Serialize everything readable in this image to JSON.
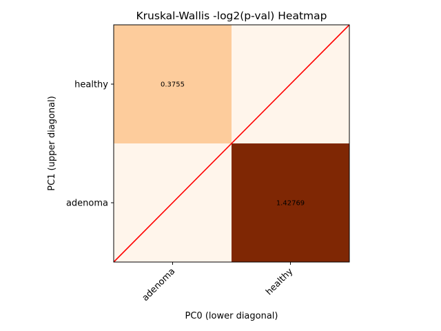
{
  "chart_data": {
    "type": "heatmap",
    "title": "Kruskal-Wallis -log2(p-val) Heatmap",
    "xlabel": "PC0 (lower diagonal)",
    "ylabel": "PC1 (upper diagonal)",
    "x_categories": [
      "adenoma",
      "healthy"
    ],
    "y_categories": [
      "healthy",
      "adenoma"
    ],
    "cells": [
      {
        "row": 0,
        "col": 0,
        "value": 0.3755,
        "label": "0.3755"
      },
      {
        "row": 0,
        "col": 1,
        "value": 0,
        "label": ""
      },
      {
        "row": 1,
        "col": 0,
        "value": 0,
        "label": ""
      },
      {
        "row": 1,
        "col": 1,
        "value": 1.42769,
        "label": "1.42769"
      }
    ],
    "value_range": [
      0,
      1.42769
    ],
    "colormap": "Oranges",
    "diagonal_line_color": "#ff0000",
    "grid": false,
    "colors": {
      "low": "#fff5eb",
      "mid": "#fdcd9f",
      "high": "#7f2704"
    }
  }
}
